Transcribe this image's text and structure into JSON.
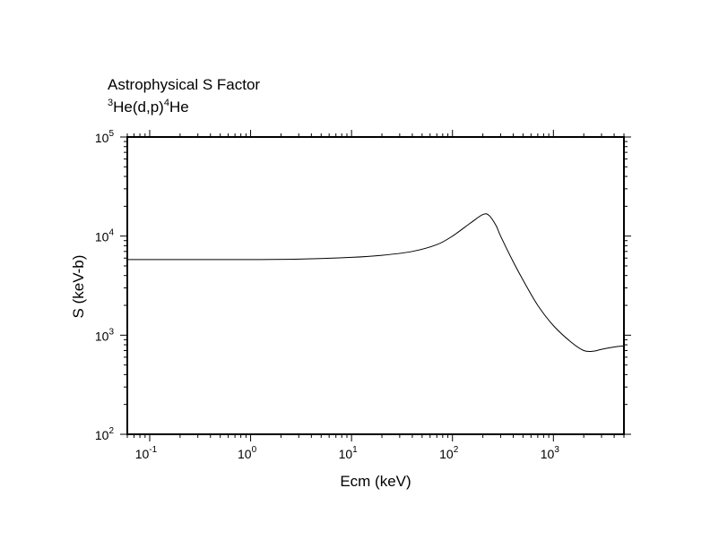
{
  "chart_data": {
    "type": "line",
    "title": "Astrophysical S Factor",
    "subtitle": {
      "parts": [
        {
          "text": "3",
          "sup": true
        },
        {
          "text": "He(d,p)",
          "sup": false
        },
        {
          "text": "4",
          "sup": true
        },
        {
          "text": "He",
          "sup": false
        }
      ]
    },
    "xlabel": "Ecm (keV)",
    "ylabel": "S (keV-b)",
    "x_scale": "log",
    "y_scale": "log",
    "xlim": [
      0.06,
      5000
    ],
    "ylim": [
      100,
      100000
    ],
    "grid": false,
    "x_ticks": [
      {
        "value": 0.1,
        "base": "10",
        "exp": "-1"
      },
      {
        "value": 1,
        "base": "10",
        "exp": "0"
      },
      {
        "value": 10,
        "base": "10",
        "exp": "1"
      },
      {
        "value": 100,
        "base": "10",
        "exp": "2"
      },
      {
        "value": 1000,
        "base": "10",
        "exp": "3"
      }
    ],
    "y_ticks": [
      {
        "value": 100,
        "base": "10",
        "exp": "2"
      },
      {
        "value": 1000,
        "base": "10",
        "exp": "3"
      },
      {
        "value": 10000,
        "base": "10",
        "exp": "4"
      },
      {
        "value": 100000,
        "base": "10",
        "exp": "5"
      }
    ],
    "series": [
      {
        "x": [
          0.06,
          0.1,
          0.3,
          1,
          3,
          10,
          20,
          40,
          70,
          100,
          150,
          200,
          230,
          270,
          300,
          400,
          500,
          700,
          1000,
          1500,
          2000,
          2500,
          3000,
          4000,
          5000
        ],
        "y": [
          5800,
          5800,
          5800,
          5800,
          5850,
          6100,
          6400,
          7000,
          8200,
          10000,
          13500,
          16500,
          16200,
          12800,
          10000,
          5500,
          3600,
          2000,
          1250,
          850,
          700,
          690,
          720,
          760,
          780
        ]
      }
    ]
  }
}
